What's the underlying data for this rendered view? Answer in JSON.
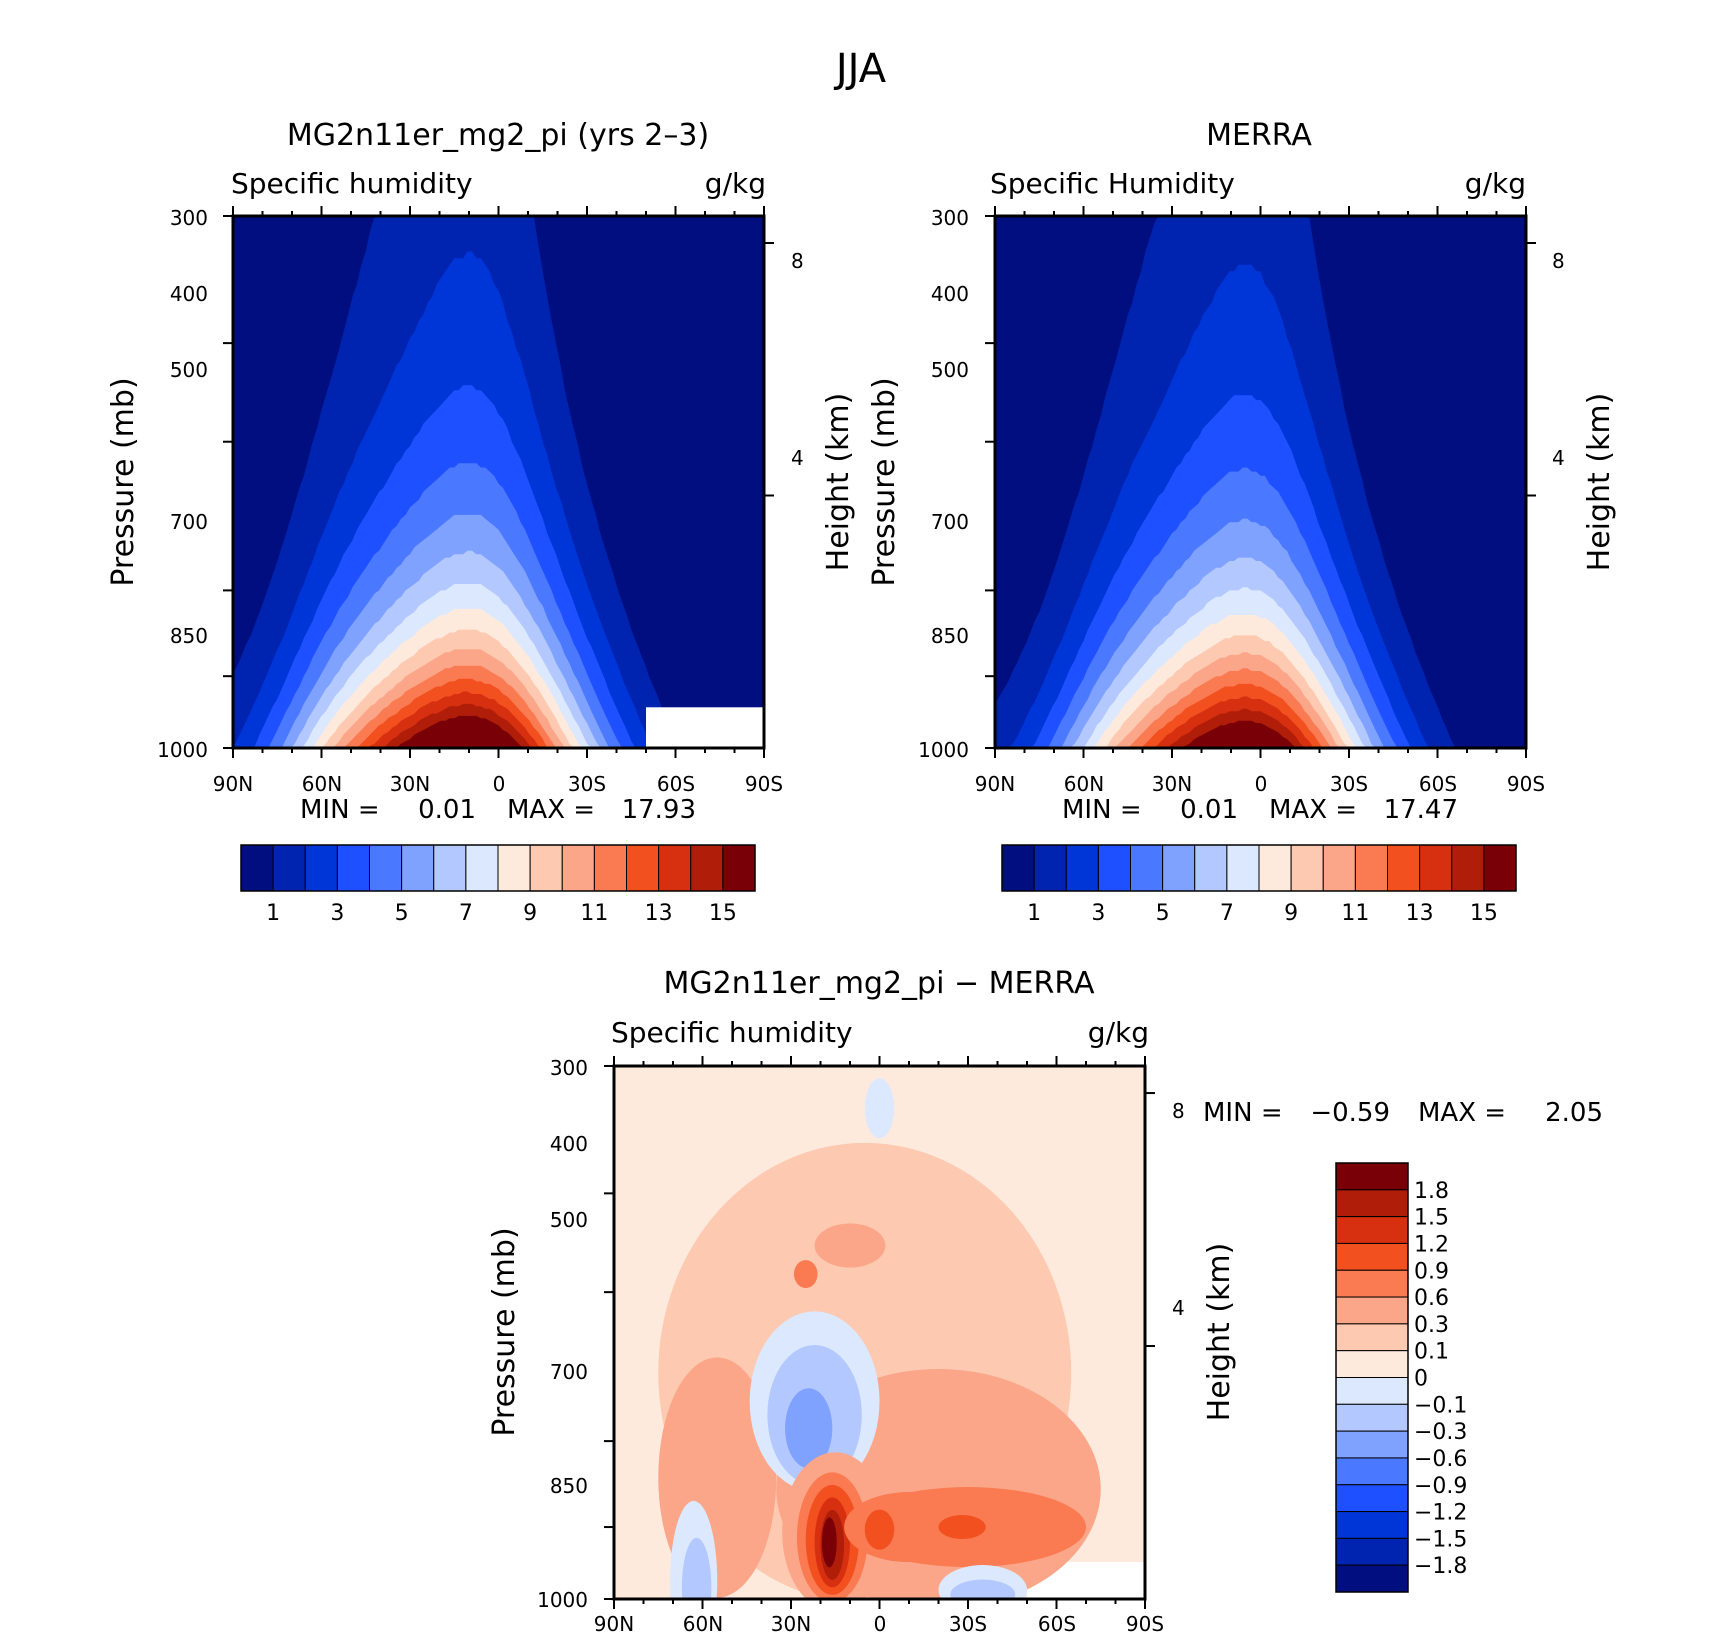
{
  "figure_title": "JJA",
  "chart_data": [
    {
      "type": "heatmap",
      "panel": "model",
      "title": "MG2n11er_mg2_pi (yrs 2–3)",
      "left_label": "Specific humidity",
      "right_label": "g/kg",
      "ylabel": "Pressure (mb)",
      "ylabel_right": "Height (km)",
      "x_ticks": [
        "90N",
        "60N",
        "30N",
        "0",
        "30S",
        "60S",
        "90S"
      ],
      "y_ticks": [
        "300",
        "400",
        "500",
        "700",
        "850",
        "1000"
      ],
      "y_ticks_right": [
        "8",
        "4"
      ],
      "xlim": [
        90,
        -90
      ],
      "ylim": [
        1000,
        300
      ],
      "stats_text": [
        "MIN =",
        "0.01",
        "MAX =",
        "17.93"
      ],
      "min": 0.01,
      "max": 17.93,
      "peak": {
        "lat": 10,
        "value": 17.93
      },
      "colorbar": {
        "labels": [
          "1",
          "3",
          "5",
          "7",
          "9",
          "11",
          "13",
          "15"
        ],
        "colors": [
          "#000e80",
          "#0024b0",
          "#0035d8",
          "#1f50ff",
          "#4a78ff",
          "#7fa1ff",
          "#b3c8ff",
          "#dce8fe",
          "#feeadd",
          "#fdc9b1",
          "#fca689",
          "#fa7a52",
          "#f2501f",
          "#d63010",
          "#b01e0a",
          "#7a0008"
        ]
      }
    },
    {
      "type": "heatmap",
      "panel": "obs",
      "title": "MERRA",
      "left_label": "Specific Humidity",
      "right_label": "g/kg",
      "ylabel": "Pressure (mb)",
      "ylabel_right": "Height (km)",
      "x_ticks": [
        "90N",
        "60N",
        "30N",
        "0",
        "30S",
        "60S",
        "90S"
      ],
      "y_ticks": [
        "300",
        "400",
        "500",
        "700",
        "850",
        "1000"
      ],
      "y_ticks_right": [
        "8",
        "4"
      ],
      "xlim": [
        90,
        -90
      ],
      "ylim": [
        1000,
        300
      ],
      "stats_text": [
        "MIN =",
        "0.01",
        "MAX =",
        "17.47"
      ],
      "min": 0.01,
      "max": 17.47,
      "peak": {
        "lat": 5,
        "value": 17.47
      },
      "colorbar": {
        "labels": [
          "1",
          "3",
          "5",
          "7",
          "9",
          "11",
          "13",
          "15"
        ],
        "colors": [
          "#000e80",
          "#0024b0",
          "#0035d8",
          "#1f50ff",
          "#4a78ff",
          "#7fa1ff",
          "#b3c8ff",
          "#dce8fe",
          "#feeadd",
          "#fdc9b1",
          "#fca689",
          "#fa7a52",
          "#f2501f",
          "#d63010",
          "#b01e0a",
          "#7a0008"
        ]
      }
    },
    {
      "type": "heatmap",
      "panel": "difference",
      "title": "MG2n11er_mg2_pi − MERRA",
      "left_label": "Specific humidity",
      "right_label": "g/kg",
      "ylabel": "Pressure (mb)",
      "ylabel_right": "Height (km)",
      "x_ticks": [
        "90N",
        "60N",
        "30N",
        "0",
        "30S",
        "60S",
        "90S"
      ],
      "y_ticks": [
        "300",
        "400",
        "500",
        "700",
        "850",
        "1000"
      ],
      "y_ticks_right": [
        "8",
        "4"
      ],
      "xlim": [
        90,
        -90
      ],
      "ylim": [
        1000,
        300
      ],
      "stats_text": [
        "MIN =",
        "−0.59",
        "MAX =",
        "2.05"
      ],
      "min": -0.59,
      "max": 2.05,
      "colorbar": {
        "labels": [
          "1.8",
          "1.5",
          "1.2",
          "0.9",
          "0.6",
          "0.3",
          "0.1",
          "0",
          "−0.1",
          "−0.3",
          "−0.6",
          "−0.9",
          "−1.2",
          "−1.5",
          "−1.8"
        ],
        "colors": [
          "#7a0008",
          "#b01e0a",
          "#d63010",
          "#f2501f",
          "#fa7a52",
          "#fca689",
          "#fdc9b1",
          "#feeadd",
          "#dce8fe",
          "#b3c8ff",
          "#7fa1ff",
          "#4a78ff",
          "#1f50ff",
          "#0035d8",
          "#0024b0",
          "#000e80"
        ]
      }
    }
  ]
}
